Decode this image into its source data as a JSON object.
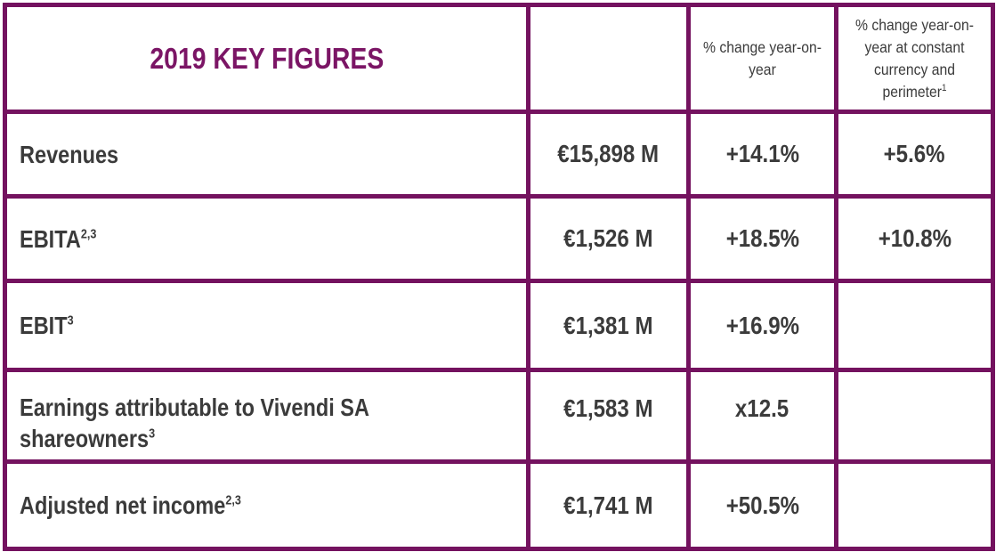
{
  "table": {
    "title": "2019 KEY FIGURES",
    "col_value_header": "",
    "col_yoy_header": "% change year-on-year",
    "col_constant_header": "% change year-on-year at constant currency and perimeter",
    "col_constant_header_sup": "1",
    "rows": [
      {
        "label": "Revenues",
        "sup": "",
        "value": "€15,898 M",
        "yoy": "+14.1%",
        "constant": "+5.6%"
      },
      {
        "label": "EBITA",
        "sup": "2,3",
        "value": "€1,526 M",
        "yoy": "+18.5%",
        "constant": "+10.8%"
      },
      {
        "label": "EBIT",
        "sup": "3",
        "value": "€1,381 M",
        "yoy": "+16.9%",
        "constant": ""
      },
      {
        "label": "Earnings attributable to Vivendi SA shareowners",
        "sup": "3",
        "value": "€1,583 M",
        "yoy": "x12.5",
        "constant": ""
      },
      {
        "label": "Adjusted net income",
        "sup": "2,3",
        "value": "€1,741 M",
        "yoy": "+50.5%",
        "constant": ""
      }
    ]
  },
  "colors": {
    "border": "#74125f",
    "title": "#7b1565",
    "text": "#3b3b3b"
  }
}
